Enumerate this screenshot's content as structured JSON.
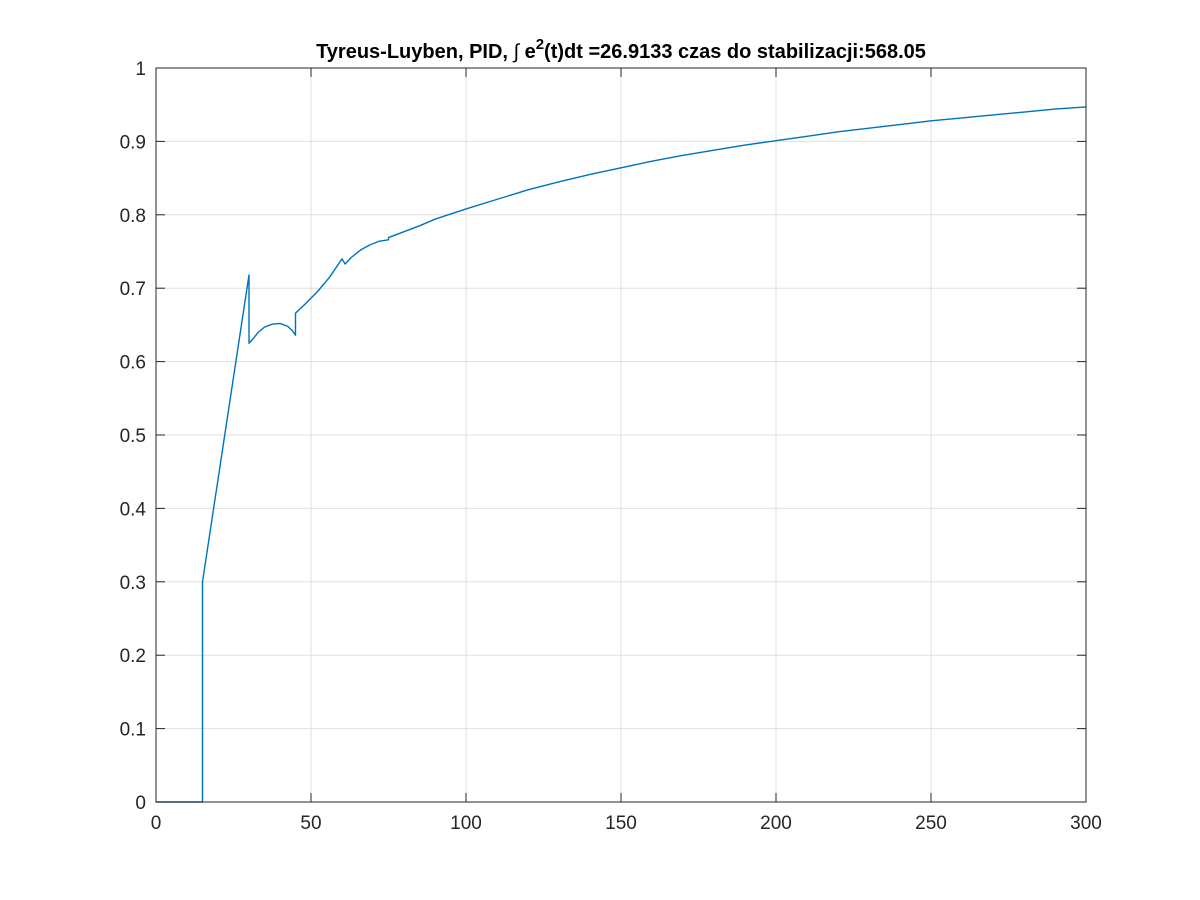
{
  "chart_data": {
    "type": "line",
    "title": {
      "prefix": "Tyreus-Luyben, PID, ",
      "integral_symbol": "∫",
      "e": " e",
      "superscript": "2",
      "suffix": "(t)dt =26.9133 czas do stabilizacji:568.05"
    },
    "xlabel": "",
    "ylabel": "",
    "xlim": [
      0,
      300
    ],
    "ylim": [
      0,
      1
    ],
    "xticks": [
      0,
      50,
      100,
      150,
      200,
      250,
      300
    ],
    "yticks": [
      0,
      0.1,
      0.2,
      0.3,
      0.4,
      0.5,
      0.6,
      0.7,
      0.8,
      0.9,
      1
    ],
    "grid": true,
    "series": [
      {
        "color": "#0072BD",
        "points": [
          [
            0,
            0
          ],
          [
            15,
            0
          ],
          [
            15,
            0.3
          ],
          [
            30,
            0.718
          ],
          [
            30,
            0.625
          ],
          [
            31.5,
            0.632
          ],
          [
            33,
            0.64
          ],
          [
            35,
            0.647
          ],
          [
            37.5,
            0.651
          ],
          [
            40,
            0.652
          ],
          [
            42.5,
            0.648
          ],
          [
            44,
            0.642
          ],
          [
            45,
            0.636
          ],
          [
            45,
            0.666
          ],
          [
            48,
            0.678
          ],
          [
            52,
            0.695
          ],
          [
            56,
            0.715
          ],
          [
            60,
            0.74
          ],
          [
            61,
            0.733
          ],
          [
            63,
            0.742
          ],
          [
            66,
            0.752
          ],
          [
            69,
            0.759
          ],
          [
            72,
            0.764
          ],
          [
            75,
            0.766
          ],
          [
            75,
            0.769
          ],
          [
            80,
            0.777
          ],
          [
            85,
            0.785
          ],
          [
            90,
            0.794
          ],
          [
            100,
            0.808
          ],
          [
            110,
            0.821
          ],
          [
            120,
            0.834
          ],
          [
            130,
            0.845
          ],
          [
            140,
            0.855
          ],
          [
            150,
            0.864
          ],
          [
            160,
            0.873
          ],
          [
            170,
            0.881
          ],
          [
            180,
            0.888
          ],
          [
            190,
            0.895
          ],
          [
            200,
            0.901
          ],
          [
            210,
            0.907
          ],
          [
            220,
            0.913
          ],
          [
            230,
            0.918
          ],
          [
            240,
            0.923
          ],
          [
            250,
            0.928
          ],
          [
            260,
            0.932
          ],
          [
            270,
            0.936
          ],
          [
            280,
            0.94
          ],
          [
            290,
            0.944
          ],
          [
            300,
            0.947
          ]
        ]
      }
    ]
  }
}
